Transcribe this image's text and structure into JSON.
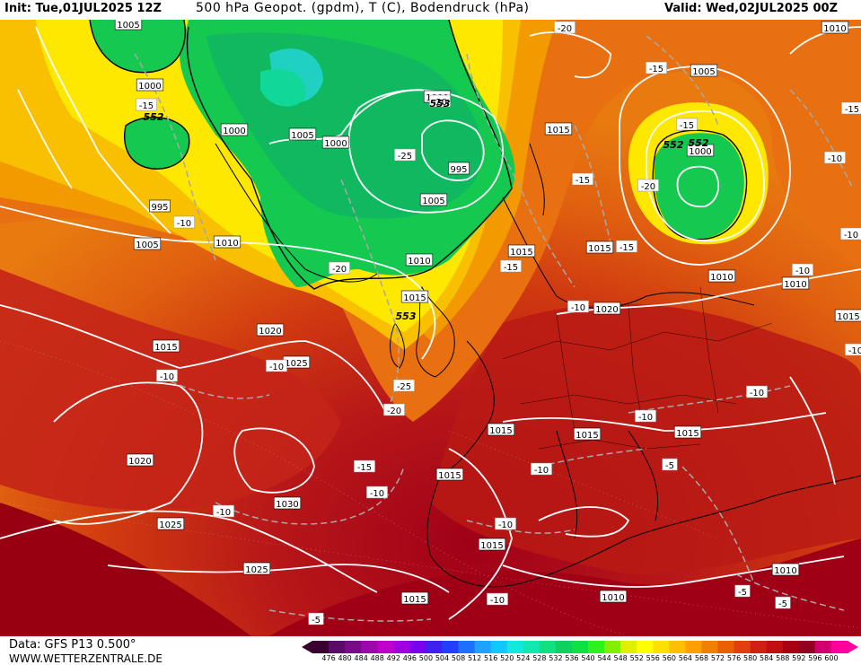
{
  "header": {
    "init": "Init: Tue,01JUL2025 12Z",
    "title": "500 hPa Geopot. (gpdm), T (C), Bodendruck (hPa)",
    "valid": "Valid: Wed,02JUL2025 00Z"
  },
  "footer": {
    "data_source": "Data: GFS P13 0.500°",
    "website": "WWW.WETTERZENTRALE.DE"
  },
  "colorbar": {
    "values": [
      "476",
      "480",
      "484",
      "488",
      "492",
      "496",
      "500",
      "504",
      "508",
      "512",
      "516",
      "520",
      "524",
      "528",
      "532",
      "536",
      "540",
      "544",
      "548",
      "552",
      "556",
      "560",
      "564",
      "568",
      "572",
      "576",
      "580",
      "584",
      "588",
      "592",
      "596",
      "600"
    ],
    "colors": [
      "#3a0030",
      "#5a0a6a",
      "#7a0a8a",
      "#9a0aaa",
      "#c000c8",
      "#a000e0",
      "#7a00f0",
      "#4020f0",
      "#2040ff",
      "#2070ff",
      "#20a0ff",
      "#10c8ff",
      "#10e8e0",
      "#10e8b0",
      "#10e080",
      "#10d060",
      "#10e040",
      "#30f020",
      "#80f000",
      "#e0f000",
      "#ffff00",
      "#ffe000",
      "#ffc000",
      "#ffa000",
      "#f08000",
      "#e86000",
      "#e04010",
      "#d02010",
      "#c01010",
      "#a80010",
      "#900020",
      "#d00070",
      "#ff00a0"
    ]
  },
  "pressure_labels": [
    "1005",
    "1000",
    "1000",
    "1005",
    "1000",
    "1000",
    "995",
    "1005",
    "995",
    "1005",
    "1010",
    "1010",
    "1015",
    "1015",
    "1015",
    "1020",
    "1020",
    "1015",
    "1025",
    "1020",
    "1030",
    "1025",
    "1025",
    "1015",
    "1015",
    "1015",
    "1015",
    "1015",
    "1015",
    "1010",
    "1010",
    "1010",
    "1010",
    "1015",
    "1005",
    "1000",
    "1010",
    "1015"
  ],
  "temp_labels": [
    "-15",
    "-20",
    "-25",
    "-20",
    "-20",
    "-15",
    "-20",
    "-15",
    "-15",
    "-15",
    "-10",
    "-15",
    "-10",
    "-10",
    "-25",
    "-20",
    "-15",
    "-10",
    "-10",
    "-10",
    "-10",
    "-10",
    "-10",
    "-5",
    "-10",
    "-5",
    "-5",
    "-10",
    "-10",
    "-15",
    "-10",
    "-10",
    "-10",
    "-5"
  ],
  "geopot_labels": [
    "552",
    "553",
    "552",
    "552",
    "553"
  ]
}
